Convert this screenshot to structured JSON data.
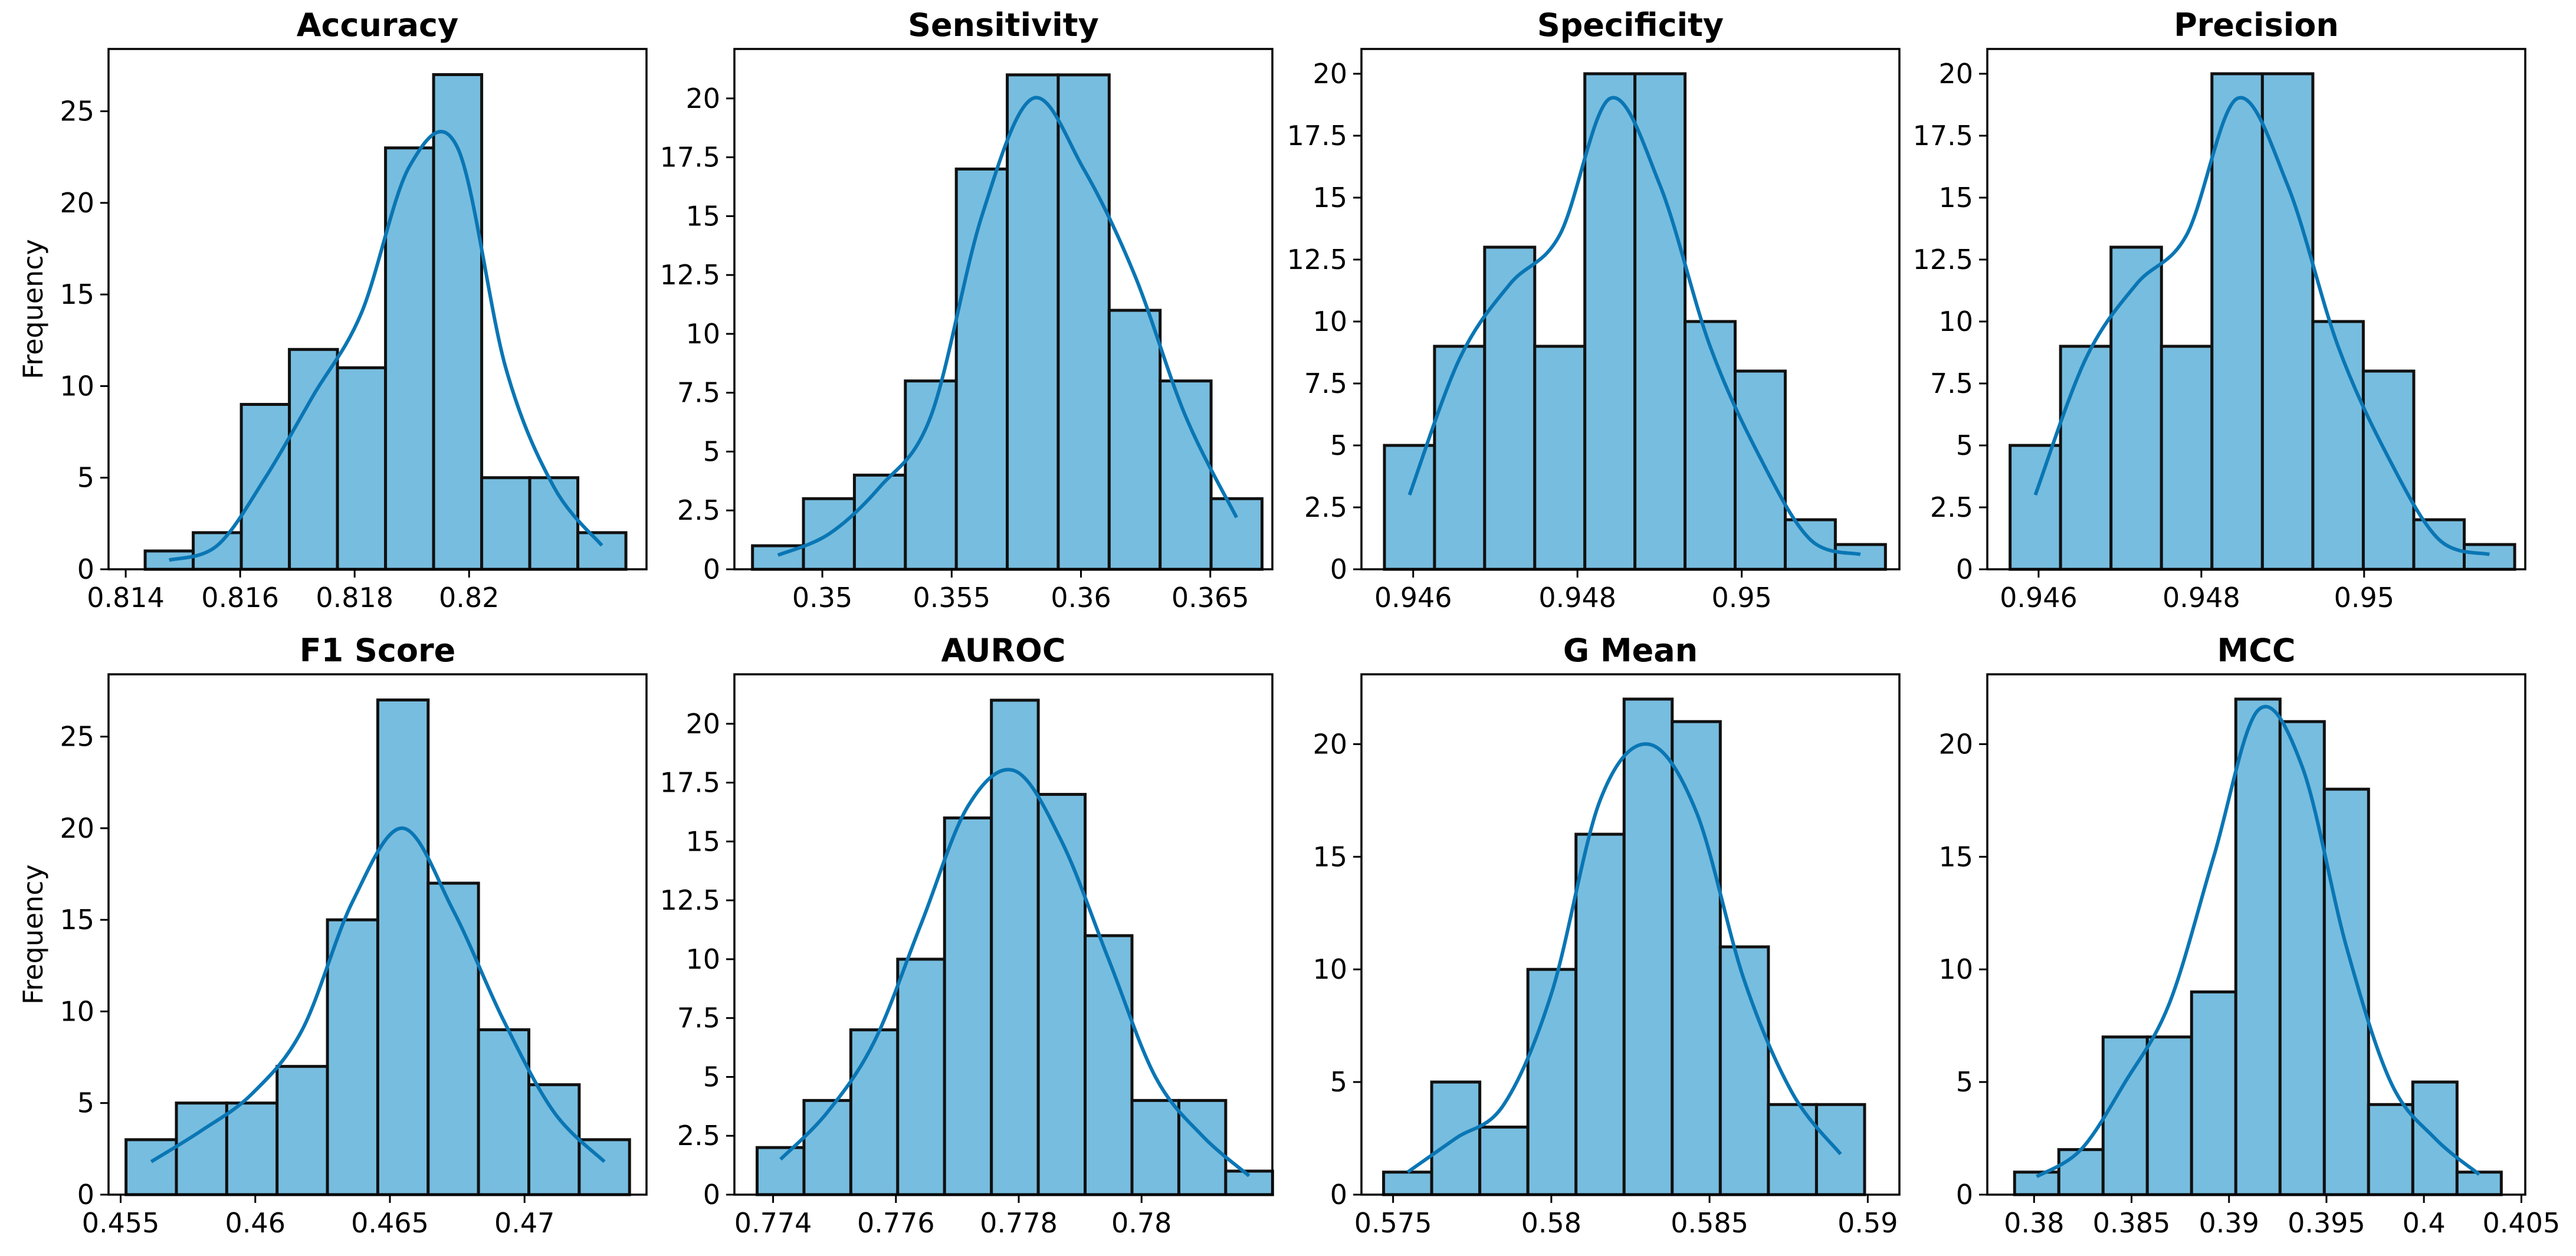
{
  "figure": {
    "ylabel": "Frequency",
    "bar_color": "#77bddf",
    "kde_color": "#0a76b4"
  },
  "chart_data": [
    {
      "type": "bar",
      "title": "Accuracy",
      "xlabel": "",
      "ylabel": "Frequency",
      "bin_start": 0.81434,
      "bin_width": 0.00084,
      "values": [
        1,
        2,
        9,
        12,
        11,
        23,
        27,
        5,
        5,
        2
      ],
      "kde": [
        0.5,
        1.3,
        5.0,
        9.5,
        14.0,
        22.0,
        23.0,
        11.0,
        4.5,
        1.3
      ],
      "xlim": [
        0.8137,
        0.8231
      ],
      "ylim": [
        0,
        28.4
      ],
      "yticks": [
        0,
        5,
        10,
        15,
        20,
        25
      ],
      "ytick_labels": [
        "0",
        "5",
        "10",
        "15",
        "20",
        "25"
      ],
      "xticks": [
        0.814,
        0.816,
        0.818,
        0.82
      ],
      "xtick_labels": [
        "0.814",
        "0.816",
        "0.818",
        "0.82"
      ]
    },
    {
      "type": "bar",
      "title": "Sensitivity",
      "xlabel": "",
      "ylabel": "",
      "bin_start": 0.3473,
      "bin_width": 0.00197,
      "values": [
        1,
        3,
        4,
        8,
        17,
        21,
        21,
        11,
        8,
        3
      ],
      "kde": [
        0.6,
        1.5,
        3.5,
        6.5,
        15.0,
        20.0,
        17.0,
        12.5,
        6.5,
        2.2
      ],
      "xlim": [
        0.3466,
        0.3674
      ],
      "ylim": [
        0,
        22.1
      ],
      "yticks": [
        0,
        2.5,
        5,
        7.5,
        10,
        12.5,
        15,
        17.5,
        20
      ],
      "ytick_labels": [
        "0",
        "2.5",
        "5",
        "7.5",
        "10",
        "12.5",
        "15",
        "17.5",
        "20"
      ],
      "xticks": [
        0.35,
        0.355,
        0.36,
        0.365
      ],
      "xtick_labels": [
        "0.35",
        "0.355",
        "0.36",
        "0.365"
      ]
    },
    {
      "type": "bar",
      "title": "Specificity",
      "xlabel": "",
      "ylabel": "",
      "bin_start": 0.94565,
      "bin_width": 0.00061,
      "values": [
        5,
        9,
        13,
        9,
        20,
        20,
        10,
        8,
        2,
        1
      ],
      "kde": [
        3.0,
        8.5,
        11.5,
        13.5,
        19.0,
        15.5,
        9.0,
        4.5,
        1.2,
        0.6
      ],
      "xlim": [
        0.94537,
        0.95192
      ],
      "ylim": [
        0,
        21
      ],
      "yticks": [
        0,
        2.5,
        5,
        7.5,
        10,
        12.5,
        15,
        17.5,
        20
      ],
      "ytick_labels": [
        "0",
        "2.5",
        "5",
        "7.5",
        "10",
        "12.5",
        "15",
        "17.5",
        "20"
      ],
      "xticks": [
        0.946,
        0.948,
        0.95
      ],
      "xtick_labels": [
        "0.946",
        "0.948",
        "0.95"
      ]
    },
    {
      "type": "bar",
      "title": "Precision",
      "xlabel": "",
      "ylabel": "",
      "bin_start": 0.94565,
      "bin_width": 0.00062,
      "values": [
        5,
        9,
        13,
        9,
        20,
        20,
        10,
        8,
        2,
        1
      ],
      "kde": [
        3.0,
        8.5,
        11.5,
        13.5,
        19.0,
        15.5,
        9.0,
        4.5,
        1.2,
        0.6
      ],
      "xlim": [
        0.94537,
        0.95198
      ],
      "ylim": [
        0,
        21
      ],
      "yticks": [
        0,
        2.5,
        5,
        7.5,
        10,
        12.5,
        15,
        17.5,
        20
      ],
      "ytick_labels": [
        "0",
        "2.5",
        "5",
        "7.5",
        "10",
        "12.5",
        "15",
        "17.5",
        "20"
      ],
      "xticks": [
        0.946,
        0.948,
        0.95
      ],
      "xtick_labels": [
        "0.946",
        "0.948",
        "0.95"
      ]
    },
    {
      "type": "bar",
      "title": "F1 Score",
      "xlabel": "",
      "ylabel": "Frequency",
      "bin_start": 0.4552,
      "bin_width": 0.00187,
      "values": [
        3,
        5,
        5,
        7,
        15,
        27,
        17,
        9,
        6,
        3
      ],
      "kde": [
        1.8,
        3.5,
        5.5,
        9.0,
        16.0,
        20.0,
        15.5,
        9.5,
        4.5,
        1.8
      ],
      "xlim": [
        0.45455,
        0.47453
      ],
      "ylim": [
        0,
        28.4
      ],
      "yticks": [
        0,
        5,
        10,
        15,
        20,
        25
      ],
      "ytick_labels": [
        "0",
        "5",
        "10",
        "15",
        "20",
        "25"
      ],
      "xticks": [
        0.455,
        0.46,
        0.465,
        0.47
      ],
      "xtick_labels": [
        "0.455",
        "0.46",
        "0.465",
        "0.47"
      ]
    },
    {
      "type": "bar",
      "title": "AUROC",
      "xlabel": "",
      "ylabel": "",
      "bin_start": 0.77374,
      "bin_width": 0.000763,
      "values": [
        2,
        4,
        7,
        10,
        16,
        21,
        17,
        11,
        4,
        4,
        1
      ],
      "kde": [
        1.5,
        3.5,
        6.5,
        11.5,
        16.5,
        18.0,
        15.0,
        10.0,
        5.0,
        2.5,
        0.8
      ],
      "xlim": [
        0.77337,
        0.78213
      ],
      "ylim": [
        0,
        22.1
      ],
      "yticks": [
        0,
        2.5,
        5,
        7.5,
        10,
        12.5,
        15,
        17.5,
        20
      ],
      "ytick_labels": [
        "0",
        "2.5",
        "5",
        "7.5",
        "10",
        "12.5",
        "15",
        "17.5",
        "20"
      ],
      "xticks": [
        0.774,
        0.776,
        0.778,
        0.78
      ],
      "xtick_labels": [
        "0.774",
        "0.776",
        "0.778",
        "0.78"
      ]
    },
    {
      "type": "bar",
      "title": "G Mean",
      "xlabel": "",
      "ylabel": "",
      "bin_start": 0.5747,
      "bin_width": 0.00152,
      "values": [
        1,
        5,
        3,
        10,
        16,
        22,
        21,
        11,
        4,
        4
      ],
      "kde": [
        1.0,
        2.5,
        4.0,
        9.0,
        17.5,
        20.0,
        17.0,
        9.5,
        4.5,
        1.8
      ],
      "xlim": [
        0.574,
        0.591
      ],
      "ylim": [
        0,
        23.1
      ],
      "yticks": [
        0,
        5,
        10,
        15,
        20
      ],
      "ytick_labels": [
        "0",
        "5",
        "10",
        "15",
        "20"
      ],
      "xticks": [
        0.575,
        0.58,
        0.585,
        0.59
      ],
      "xtick_labels": [
        "0.575",
        "0.58",
        "0.585",
        "0.59"
      ]
    },
    {
      "type": "bar",
      "title": "MCC",
      "xlabel": "",
      "ylabel": "",
      "bin_start": 0.379,
      "bin_width": 0.00227,
      "values": [
        1,
        2,
        7,
        7,
        9,
        22,
        21,
        18,
        4,
        5,
        1
      ],
      "kde": [
        0.8,
        2.0,
        5.0,
        8.5,
        15.0,
        21.5,
        19.0,
        11.0,
        5.0,
        2.5,
        0.9
      ],
      "xlim": [
        0.3776,
        0.4052
      ],
      "ylim": [
        0,
        23.1
      ],
      "yticks": [
        0,
        5,
        10,
        15,
        20
      ],
      "ytick_labels": [
        "0",
        "5",
        "10",
        "15",
        "20"
      ],
      "xticks": [
        0.38,
        0.385,
        0.39,
        0.395,
        0.4,
        0.405
      ],
      "xtick_labels": [
        "0.38",
        "0.385",
        "0.39",
        "0.395",
        "0.4",
        "0.405"
      ]
    }
  ]
}
